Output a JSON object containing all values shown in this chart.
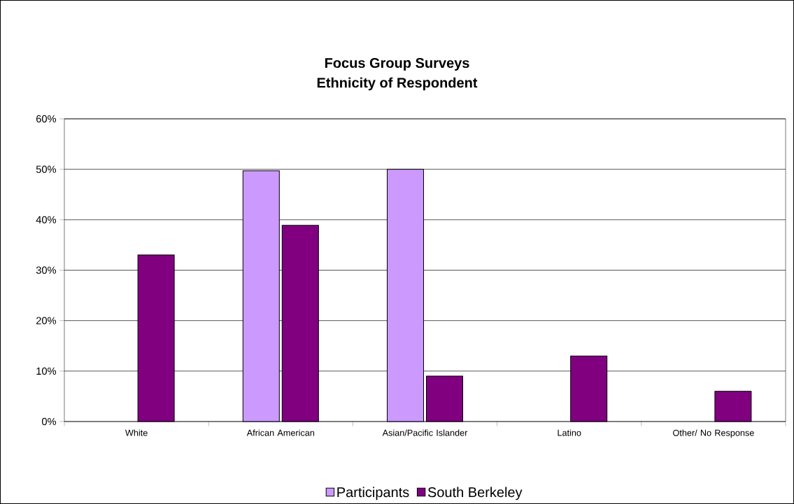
{
  "chart_data": {
    "type": "bar",
    "title": "Focus Group Surveys",
    "subtitle": "Ethnicity of Respondent",
    "categories": [
      "White",
      "African American",
      "Asian/Pacific Islander",
      "Latino",
      "Other/ No Response"
    ],
    "series": [
      {
        "name": "Participants",
        "color": "#cc99ff",
        "values": [
          null,
          49.7,
          50,
          null,
          null
        ]
      },
      {
        "name": "South Berkeley",
        "color": "#800080",
        "values": [
          33,
          38.9,
          9,
          13,
          6
        ]
      }
    ],
    "ylim": [
      0,
      60
    ],
    "yticks": [
      {
        "value": 0,
        "label": "0%"
      },
      {
        "value": 10,
        "label": "10%"
      },
      {
        "value": 20,
        "label": "20%"
      },
      {
        "value": 30,
        "label": "30%"
      },
      {
        "value": 40,
        "label": "40%"
      },
      {
        "value": 50,
        "label": "50%"
      },
      {
        "value": 60,
        "label": "60%"
      }
    ],
    "grid": "y",
    "legend": "bottom"
  }
}
